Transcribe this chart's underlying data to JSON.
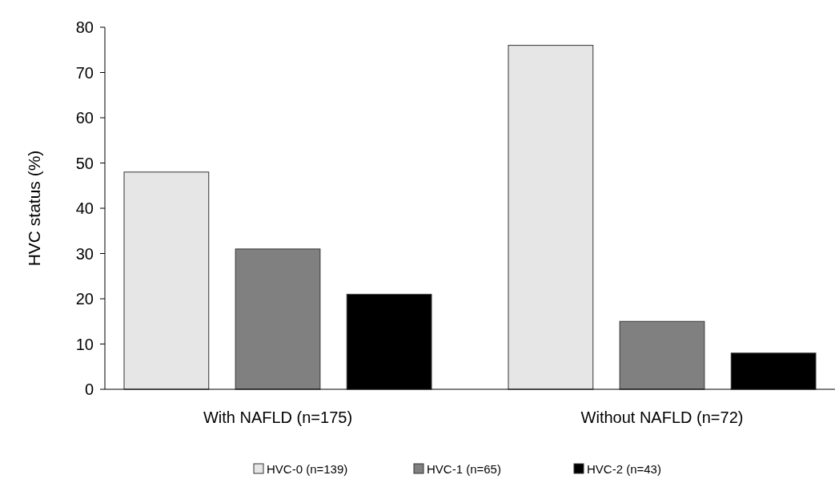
{
  "chart_data": {
    "type": "bar",
    "ylabel": "HVC status (%)",
    "categories": [
      "With NAFLD (n=175)",
      "Without NAFLD (n=72)"
    ],
    "series": [
      {
        "name": "HVC-0 (n=139)",
        "color": "#e6e6e6",
        "values": [
          48,
          76
        ]
      },
      {
        "name": "HVC-1 (n=65)",
        "color": "#808080",
        "values": [
          31,
          15
        ]
      },
      {
        "name": "HVC-2 (n=43)",
        "color": "#000000",
        "values": [
          21,
          8
        ]
      }
    ],
    "ylim": [
      0,
      80
    ],
    "yticks": [
      0,
      10,
      20,
      30,
      40,
      50,
      60,
      70,
      80
    ],
    "grid": false,
    "legend": "bottom"
  }
}
